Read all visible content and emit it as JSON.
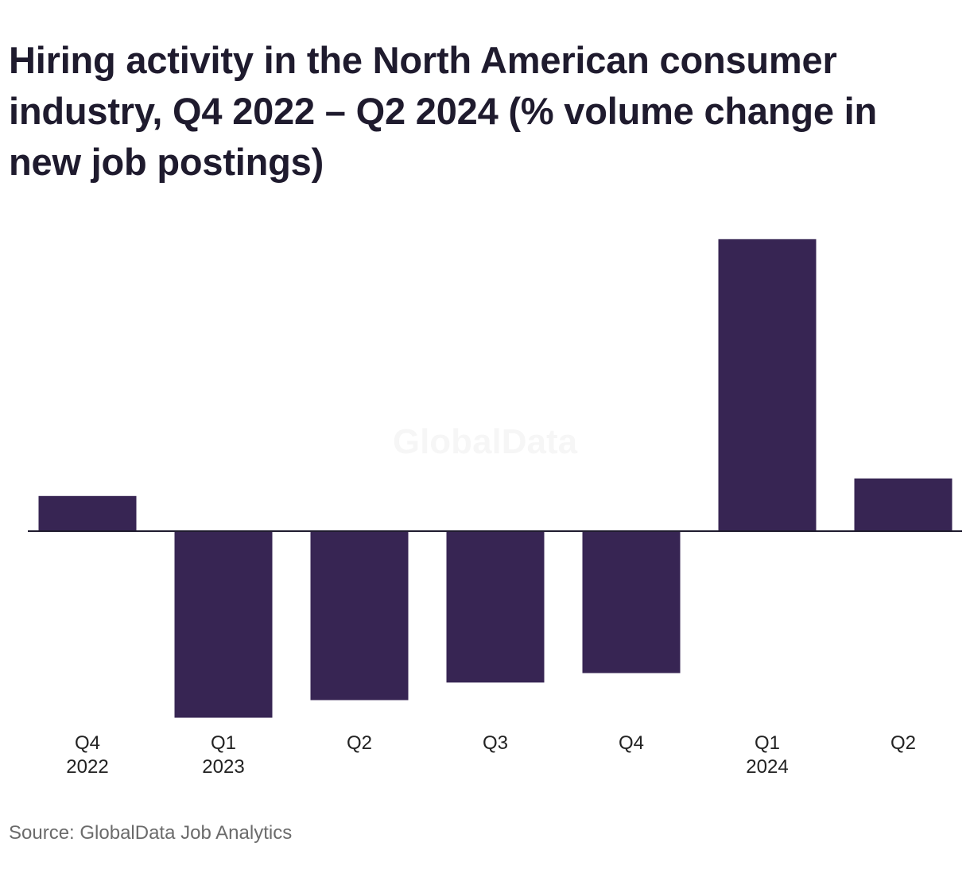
{
  "chart_data": {
    "type": "bar",
    "title": "Hiring activity in the North American consumer industry, Q4 2022 – Q2 2024 (% volume change in new job postings)",
    "categories": [
      [
        "Q4",
        "2022"
      ],
      [
        "Q1",
        "2023"
      ],
      [
        "Q2"
      ],
      [
        "Q3"
      ],
      [
        "Q4"
      ],
      [
        "Q1",
        "2024"
      ],
      [
        "Q2"
      ]
    ],
    "values": [
      2.6,
      -13.8,
      -12.5,
      -11.2,
      -10.5,
      21.6,
      3.9
    ],
    "xlabel": "",
    "ylabel": "",
    "ylim": [
      -16,
      26
    ],
    "grid": false,
    "legend": "none",
    "bar_color": "#372553",
    "axis_color": "#1f1b2e",
    "watermark": "GlobalData",
    "source": "Source: GlobalData Job Analytics"
  }
}
